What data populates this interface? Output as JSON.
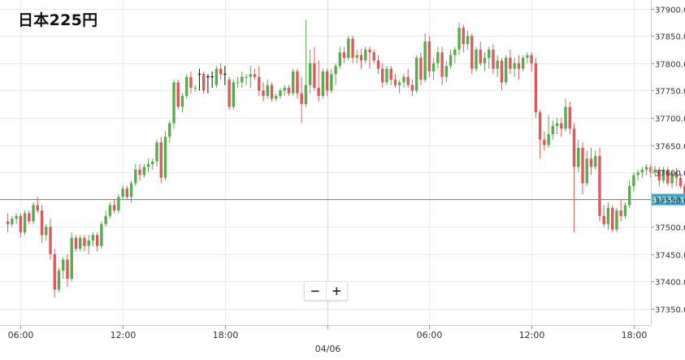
{
  "title": "日本225円",
  "current_price_label": "37550.1",
  "zoom": {
    "zoom_out": "−",
    "zoom_in": "+"
  },
  "colors": {
    "up": "#5aaa4e",
    "down": "#dc5a5e",
    "neutral": "#111111",
    "price_line": "#3aa6c2",
    "grid": "#ececec",
    "tag_bg": "#3aa6c2"
  },
  "chart_data": {
    "type": "candlestick",
    "title": "日本225円",
    "ylim": [
      37320,
      37910
    ],
    "y_ticks": [
      37350,
      37400,
      37450,
      37500,
      37550,
      37600,
      37650,
      37700,
      37750,
      37800,
      37850,
      37900
    ],
    "y_tick_labels": [
      "37350.0",
      "37400.0",
      "37450.0",
      "37500.0",
      "37550.0",
      "37600.0",
      "37650.0",
      "37700.0",
      "37750.0",
      "37800.0",
      "37850.0",
      "37900.0"
    ],
    "x_ticks": [
      {
        "i": 3,
        "label": "06:00"
      },
      {
        "i": 27,
        "label": "12:00"
      },
      {
        "i": 51,
        "label": "18:00"
      },
      {
        "i": 75,
        "label": ""
      },
      {
        "i": 99,
        "label": "06:00"
      },
      {
        "i": 123,
        "label": "12:00"
      },
      {
        "i": 147,
        "label": "18:00"
      }
    ],
    "date_label": {
      "i": 75,
      "label": "04/06"
    },
    "current_price": 37550.1,
    "candles": [
      [
        37510,
        37525,
        37490,
        37505
      ],
      [
        37505,
        37520,
        37500,
        37515
      ],
      [
        37515,
        37525,
        37505,
        37520
      ],
      [
        37520,
        37525,
        37480,
        37490
      ],
      [
        37490,
        37530,
        37485,
        37525
      ],
      [
        37525,
        37530,
        37505,
        37510
      ],
      [
        37510,
        37545,
        37505,
        37540
      ],
      [
        37540,
        37555,
        37525,
        37530
      ],
      [
        37530,
        37540,
        37470,
        37485
      ],
      [
        37485,
        37505,
        37475,
        37500
      ],
      [
        37500,
        37515,
        37440,
        37450
      ],
      [
        37450,
        37460,
        37370,
        37385
      ],
      [
        37385,
        37425,
        37380,
        37420
      ],
      [
        37420,
        37445,
        37405,
        37440
      ],
      [
        37440,
        37450,
        37390,
        37405
      ],
      [
        37405,
        37490,
        37400,
        37480
      ],
      [
        37480,
        37485,
        37455,
        37460
      ],
      [
        37460,
        37485,
        37455,
        37480
      ],
      [
        37480,
        37485,
        37455,
        37465
      ],
      [
        37465,
        37485,
        37450,
        37475
      ],
      [
        37475,
        37490,
        37465,
        37485
      ],
      [
        37485,
        37490,
        37455,
        37465
      ],
      [
        37465,
        37510,
        37460,
        37505
      ],
      [
        37505,
        37530,
        37500,
        37520
      ],
      [
        37520,
        37545,
        37515,
        37540
      ],
      [
        37540,
        37550,
        37525,
        37530
      ],
      [
        37530,
        37560,
        37525,
        37555
      ],
      [
        37555,
        37575,
        37550,
        37570
      ],
      [
        37570,
        37575,
        37550,
        37555
      ],
      [
        37555,
        37585,
        37545,
        37580
      ],
      [
        37580,
        37615,
        37575,
        37605
      ],
      [
        37605,
        37615,
        37585,
        37595
      ],
      [
        37595,
        37615,
        37590,
        37610
      ],
      [
        37610,
        37625,
        37600,
        37615
      ],
      [
        37615,
        37625,
        37605,
        37620
      ],
      [
        37620,
        37660,
        37610,
        37655
      ],
      [
        37655,
        37665,
        37580,
        37590
      ],
      [
        37590,
        37675,
        37585,
        37665
      ],
      [
        37665,
        37695,
        37655,
        37690
      ],
      [
        37690,
        37770,
        37680,
        37765
      ],
      [
        37765,
        37770,
        37715,
        37720
      ],
      [
        37720,
        37745,
        37710,
        37740
      ],
      [
        37740,
        37780,
        37735,
        37775
      ],
      [
        37775,
        37785,
        37745,
        37755
      ],
      [
        37755,
        37760,
        37748,
        37755
      ],
      [
        37755,
        37790,
        37750,
        37780
      ],
      [
        37780,
        37785,
        37745,
        37750
      ],
      [
        37750,
        37780,
        37745,
        37775
      ],
      [
        37775,
        37785,
        37755,
        37760
      ],
      [
        37760,
        37795,
        37755,
        37790
      ],
      [
        37790,
        37800,
        37770,
        37780
      ],
      [
        37780,
        37795,
        37760,
        37770
      ],
      [
        37770,
        37775,
        37715,
        37720
      ],
      [
        37720,
        37770,
        37715,
        37765
      ],
      [
        37765,
        37775,
        37755,
        37765
      ],
      [
        37765,
        37785,
        37755,
        37775
      ],
      [
        37775,
        37780,
        37760,
        37775
      ],
      [
        37775,
        37795,
        37755,
        37780
      ],
      [
        37780,
        37790,
        37770,
        37775
      ],
      [
        37775,
        37795,
        37740,
        37750
      ],
      [
        37750,
        37765,
        37730,
        37740
      ],
      [
        37740,
        37770,
        37735,
        37760
      ],
      [
        37760,
        37765,
        37730,
        37735
      ],
      [
        37735,
        37745,
        37730,
        37740
      ],
      [
        37740,
        37755,
        37735,
        37750
      ],
      [
        37750,
        37760,
        37740,
        37755
      ],
      [
        37755,
        37760,
        37740,
        37745
      ],
      [
        37745,
        37790,
        37740,
        37785
      ],
      [
        37785,
        37790,
        37735,
        37745
      ],
      [
        37745,
        37775,
        37690,
        37725
      ],
      [
        37725,
        37880,
        37720,
        37760
      ],
      [
        37760,
        37825,
        37745,
        37800
      ],
      [
        37800,
        37830,
        37750,
        37755
      ],
      [
        37755,
        37805,
        37730,
        37740
      ],
      [
        37740,
        37790,
        37735,
        37785
      ],
      [
        37785,
        37790,
        37740,
        37750
      ],
      [
        37750,
        37790,
        37745,
        37780
      ],
      [
        37780,
        37800,
        37760,
        37795
      ],
      [
        37795,
        37830,
        37790,
        37820
      ],
      [
        37820,
        37830,
        37800,
        37810
      ],
      [
        37810,
        37850,
        37805,
        37845
      ],
      [
        37845,
        37850,
        37800,
        37810
      ],
      [
        37810,
        37825,
        37800,
        37815
      ],
      [
        37815,
        37825,
        37790,
        37805
      ],
      [
        37805,
        37830,
        37800,
        37825
      ],
      [
        37825,
        37830,
        37790,
        37820
      ],
      [
        37820,
        37825,
        37800,
        37805
      ],
      [
        37805,
        37815,
        37780,
        37790
      ],
      [
        37790,
        37800,
        37755,
        37765
      ],
      [
        37765,
        37795,
        37760,
        37790
      ],
      [
        37790,
        37795,
        37760,
        37770
      ],
      [
        37770,
        37780,
        37755,
        37760
      ],
      [
        37760,
        37770,
        37745,
        37765
      ],
      [
        37765,
        37780,
        37755,
        37775
      ],
      [
        37775,
        37790,
        37755,
        37760
      ],
      [
        37760,
        37770,
        37740,
        37750
      ],
      [
        37750,
        37815,
        37745,
        37810
      ],
      [
        37810,
        37820,
        37760,
        37770
      ],
      [
        37770,
        37855,
        37765,
        37840
      ],
      [
        37840,
        37850,
        37775,
        37785
      ],
      [
        37785,
        37810,
        37770,
        37800
      ],
      [
        37800,
        37830,
        37790,
        37820
      ],
      [
        37820,
        37830,
        37760,
        37775
      ],
      [
        37775,
        37805,
        37765,
        37795
      ],
      [
        37795,
        37825,
        37790,
        37815
      ],
      [
        37815,
        37830,
        37800,
        37825
      ],
      [
        37825,
        37875,
        37815,
        37865
      ],
      [
        37865,
        37870,
        37820,
        37835
      ],
      [
        37835,
        37860,
        37825,
        37850
      ],
      [
        37850,
        37855,
        37780,
        37790
      ],
      [
        37790,
        37830,
        37785,
        37825
      ],
      [
        37825,
        37840,
        37795,
        37800
      ],
      [
        37800,
        37820,
        37785,
        37810
      ],
      [
        37810,
        37830,
        37790,
        37825
      ],
      [
        37825,
        37835,
        37780,
        37790
      ],
      [
        37790,
        37815,
        37775,
        37805
      ],
      [
        37805,
        37810,
        37750,
        37765
      ],
      [
        37765,
        37815,
        37760,
        37810
      ],
      [
        37810,
        37825,
        37780,
        37790
      ],
      [
        37790,
        37810,
        37775,
        37800
      ],
      [
        37800,
        37815,
        37770,
        37790
      ],
      [
        37790,
        37815,
        37785,
        37810
      ],
      [
        37810,
        37820,
        37800,
        37815
      ],
      [
        37815,
        37820,
        37785,
        37800
      ],
      [
        37800,
        37810,
        37700,
        37710
      ],
      [
        37710,
        37715,
        37625,
        37660
      ],
      [
        37660,
        37675,
        37640,
        37650
      ],
      [
        37650,
        37705,
        37645,
        37670
      ],
      [
        37670,
        37695,
        37660,
        37685
      ],
      [
        37685,
        37700,
        37670,
        37690
      ],
      [
        37690,
        37700,
        37665,
        37680
      ],
      [
        37680,
        37735,
        37675,
        37720
      ],
      [
        37720,
        37730,
        37670,
        37680
      ],
      [
        37680,
        37690,
        37490,
        37610
      ],
      [
        37610,
        37660,
        37600,
        37645
      ],
      [
        37645,
        37655,
        37560,
        37580
      ],
      [
        37580,
        37640,
        37575,
        37625
      ],
      [
        37625,
        37645,
        37595,
        37610
      ],
      [
        37610,
        37640,
        37605,
        37630
      ],
      [
        37630,
        37645,
        37510,
        37520
      ],
      [
        37520,
        37540,
        37500,
        37505
      ],
      [
        37505,
        37545,
        37495,
        37535
      ],
      [
        37535,
        37540,
        37490,
        37495
      ],
      [
        37495,
        37535,
        37490,
        37530
      ],
      [
        37530,
        37550,
        37510,
        37520
      ],
      [
        37520,
        37545,
        37515,
        37540
      ],
      [
        37540,
        37585,
        37535,
        37575
      ],
      [
        37575,
        37600,
        37565,
        37595
      ],
      [
        37595,
        37605,
        37585,
        37600
      ],
      [
        37600,
        37610,
        37590,
        37605
      ],
      [
        37605,
        37615,
        37595,
        37610
      ],
      [
        37610,
        37615,
        37590,
        37600
      ],
      [
        37600,
        37612,
        37592,
        37605
      ],
      [
        37605,
        37610,
        37575,
        37585
      ],
      [
        37585,
        37610,
        37580,
        37605
      ],
      [
        37605,
        37610,
        37575,
        37580
      ],
      [
        37580,
        37605,
        37570,
        37600
      ],
      [
        37600,
        37608,
        37575,
        37590
      ],
      [
        37590,
        37598,
        37570,
        37575
      ],
      [
        37575,
        37580,
        37545,
        37550.1
      ]
    ],
    "dojis": [
      45,
      47,
      48,
      51
    ]
  }
}
